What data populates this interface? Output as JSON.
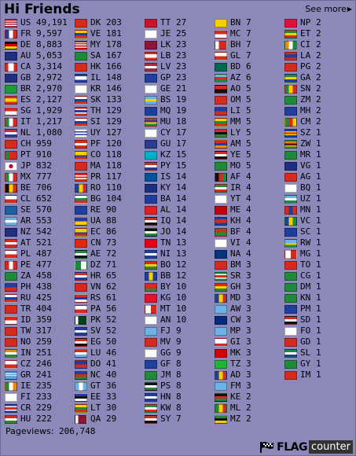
{
  "header": {
    "title": "Hi Friends",
    "see_more": "See more"
  },
  "footer": {
    "pageviews_label": "Pageviews:",
    "pageviews_value": "206,748",
    "brand_flag": "FLAG",
    "brand_counter": "counter"
  },
  "columns": [
    [
      {
        "code": "US",
        "count": "49,191"
      },
      {
        "code": "FR",
        "count": "9,597"
      },
      {
        "code": "DE",
        "count": "8,883"
      },
      {
        "code": "AU",
        "count": "5,053"
      },
      {
        "code": "CA",
        "count": "3,314"
      },
      {
        "code": "GB",
        "count": "2,972"
      },
      {
        "code": "BR",
        "count": "2,970"
      },
      {
        "code": "ES",
        "count": "2,127"
      },
      {
        "code": "SG",
        "count": "1,929"
      },
      {
        "code": "IT",
        "count": "1,217"
      },
      {
        "code": "NL",
        "count": "1,080"
      },
      {
        "code": "CH",
        "count": "959"
      },
      {
        "code": "PT",
        "count": "910"
      },
      {
        "code": "JP",
        "count": "832"
      },
      {
        "code": "MX",
        "count": "777"
      },
      {
        "code": "BE",
        "count": "706"
      },
      {
        "code": "CL",
        "count": "652"
      },
      {
        "code": "SE",
        "count": "570"
      },
      {
        "code": "AR",
        "count": "553"
      },
      {
        "code": "NZ",
        "count": "542"
      },
      {
        "code": "AT",
        "count": "521"
      },
      {
        "code": "PL",
        "count": "487"
      },
      {
        "code": "PE",
        "count": "477"
      },
      {
        "code": "ZA",
        "count": "458"
      },
      {
        "code": "PH",
        "count": "438"
      },
      {
        "code": "RU",
        "count": "425"
      },
      {
        "code": "TR",
        "count": "404"
      },
      {
        "code": "ID",
        "count": "359"
      },
      {
        "code": "TW",
        "count": "317"
      },
      {
        "code": "NO",
        "count": "259"
      },
      {
        "code": "IN",
        "count": "251"
      },
      {
        "code": "CZ",
        "count": "246"
      },
      {
        "code": "GR",
        "count": "241"
      },
      {
        "code": "IE",
        "count": "235"
      },
      {
        "code": "FI",
        "count": "233"
      },
      {
        "code": "CR",
        "count": "229"
      },
      {
        "code": "HU",
        "count": "222"
      }
    ],
    [
      {
        "code": "DK",
        "count": "203"
      },
      {
        "code": "VE",
        "count": "181"
      },
      {
        "code": "MY",
        "count": "178"
      },
      {
        "code": "SA",
        "count": "167"
      },
      {
        "code": "HK",
        "count": "166"
      },
      {
        "code": "IL",
        "count": "148"
      },
      {
        "code": "KR",
        "count": "146"
      },
      {
        "code": "SK",
        "count": "133"
      },
      {
        "code": "TH",
        "count": "129"
      },
      {
        "code": "SI",
        "count": "129"
      },
      {
        "code": "UY",
        "count": "127"
      },
      {
        "code": "PF",
        "count": "120"
      },
      {
        "code": "CO",
        "count": "118"
      },
      {
        "code": "MA",
        "count": "118"
      },
      {
        "code": "PR",
        "count": "117"
      },
      {
        "code": "RO",
        "count": "110"
      },
      {
        "code": "BG",
        "count": "104"
      },
      {
        "code": "RE",
        "count": "90"
      },
      {
        "code": "UA",
        "count": "88"
      },
      {
        "code": "EC",
        "count": "86"
      },
      {
        "code": "CN",
        "count": "73"
      },
      {
        "code": "AE",
        "count": "72"
      },
      {
        "code": "DZ",
        "count": "71"
      },
      {
        "code": "HR",
        "count": "65"
      },
      {
        "code": "VN",
        "count": "62"
      },
      {
        "code": "RS",
        "count": "61"
      },
      {
        "code": "PA",
        "count": "56"
      },
      {
        "code": "PK",
        "count": "52"
      },
      {
        "code": "SV",
        "count": "52"
      },
      {
        "code": "EG",
        "count": "50"
      },
      {
        "code": "LU",
        "count": "46"
      },
      {
        "code": "DO",
        "count": "41"
      },
      {
        "code": "NC",
        "count": "40"
      },
      {
        "code": "GT",
        "count": "36"
      },
      {
        "code": "EE",
        "count": "33"
      },
      {
        "code": "LT",
        "count": "30"
      },
      {
        "code": "QA",
        "count": "29"
      }
    ],
    [
      {
        "code": "TT",
        "count": "27"
      },
      {
        "code": "JE",
        "count": "25"
      },
      {
        "code": "LK",
        "count": "23"
      },
      {
        "code": "LB",
        "count": "23"
      },
      {
        "code": "LV",
        "count": "23"
      },
      {
        "code": "GP",
        "count": "23"
      },
      {
        "code": "GE",
        "count": "21"
      },
      {
        "code": "BS",
        "count": "19"
      },
      {
        "code": "MQ",
        "count": "19"
      },
      {
        "code": "MU",
        "count": "18"
      },
      {
        "code": "CY",
        "count": "17"
      },
      {
        "code": "GU",
        "count": "17"
      },
      {
        "code": "KZ",
        "count": "15"
      },
      {
        "code": "PY",
        "count": "15"
      },
      {
        "code": "IS",
        "count": "14"
      },
      {
        "code": "KY",
        "count": "14"
      },
      {
        "code": "BA",
        "count": "14"
      },
      {
        "code": "AL",
        "count": "14"
      },
      {
        "code": "IQ",
        "count": "14"
      },
      {
        "code": "JO",
        "count": "14"
      },
      {
        "code": "TN",
        "count": "13"
      },
      {
        "code": "NI",
        "count": "13"
      },
      {
        "code": "BO",
        "count": "12"
      },
      {
        "code": "BB",
        "count": "12"
      },
      {
        "code": "BY",
        "count": "10"
      },
      {
        "code": "KG",
        "count": "10"
      },
      {
        "code": "MT",
        "count": "10"
      },
      {
        "code": "AN",
        "count": "10"
      },
      {
        "code": "FJ",
        "count": "9"
      },
      {
        "code": "MV",
        "count": "9"
      },
      {
        "code": "GG",
        "count": "9"
      },
      {
        "code": "GF",
        "count": "8"
      },
      {
        "code": "JM",
        "count": "8"
      },
      {
        "code": "PS",
        "count": "8"
      },
      {
        "code": "HN",
        "count": "8"
      },
      {
        "code": "KW",
        "count": "8"
      },
      {
        "code": "SY",
        "count": "7"
      }
    ],
    [
      {
        "code": "BN",
        "count": "7"
      },
      {
        "code": "MC",
        "count": "7"
      },
      {
        "code": "BH",
        "count": "7"
      },
      {
        "code": "GL",
        "count": "7"
      },
      {
        "code": "BD",
        "count": "6"
      },
      {
        "code": "AZ",
        "count": "6"
      },
      {
        "code": "AO",
        "count": "5"
      },
      {
        "code": "OM",
        "count": "5"
      },
      {
        "code": "LI",
        "count": "5"
      },
      {
        "code": "MM",
        "count": "5"
      },
      {
        "code": "LY",
        "count": "5"
      },
      {
        "code": "AM",
        "count": "5"
      },
      {
        "code": "YE",
        "count": "5"
      },
      {
        "code": "MO",
        "count": "5"
      },
      {
        "code": "AF",
        "count": "4"
      },
      {
        "code": "IR",
        "count": "4"
      },
      {
        "code": "YT",
        "count": "4"
      },
      {
        "code": "ME",
        "count": "4"
      },
      {
        "code": "KH",
        "count": "4"
      },
      {
        "code": "BF",
        "count": "4"
      },
      {
        "code": "VI",
        "count": "4"
      },
      {
        "code": "NA",
        "count": "4"
      },
      {
        "code": "BM",
        "count": "3"
      },
      {
        "code": "SR",
        "count": "3"
      },
      {
        "code": "GH",
        "count": "3"
      },
      {
        "code": "MD",
        "count": "3"
      },
      {
        "code": "AW",
        "count": "3"
      },
      {
        "code": "CW",
        "count": "3"
      },
      {
        "code": "MP",
        "count": "3"
      },
      {
        "code": "GI",
        "count": "3"
      },
      {
        "code": "MK",
        "count": "3"
      },
      {
        "code": "TZ",
        "count": "3"
      },
      {
        "code": "AD",
        "count": "3"
      },
      {
        "code": "FM",
        "count": "3"
      },
      {
        "code": "KE",
        "count": "2"
      },
      {
        "code": "ML",
        "count": "2"
      },
      {
        "code": "MZ",
        "count": "2"
      }
    ],
    [
      {
        "code": "NP",
        "count": "2"
      },
      {
        "code": "ET",
        "count": "2"
      },
      {
        "code": "CI",
        "count": "2"
      },
      {
        "code": "LA",
        "count": "2"
      },
      {
        "code": "PG",
        "count": "2"
      },
      {
        "code": "GA",
        "count": "2"
      },
      {
        "code": "SN",
        "count": "2"
      },
      {
        "code": "ZM",
        "count": "2"
      },
      {
        "code": "MH",
        "count": "2"
      },
      {
        "code": "CM",
        "count": "2"
      },
      {
        "code": "SZ",
        "count": "1"
      },
      {
        "code": "ZW",
        "count": "1"
      },
      {
        "code": "MR",
        "count": "1"
      },
      {
        "code": "VG",
        "count": "1"
      },
      {
        "code": "AG",
        "count": "1"
      },
      {
        "code": "BQ",
        "count": "1"
      },
      {
        "code": "UZ",
        "count": "1"
      },
      {
        "code": "MN",
        "count": "1"
      },
      {
        "code": "VC",
        "count": "1"
      },
      {
        "code": "SC",
        "count": "1"
      },
      {
        "code": "RW",
        "count": "1"
      },
      {
        "code": "MG",
        "count": "1"
      },
      {
        "code": "TO",
        "count": "1"
      },
      {
        "code": "CG",
        "count": "1"
      },
      {
        "code": "DM",
        "count": "1"
      },
      {
        "code": "KN",
        "count": "1"
      },
      {
        "code": "PM",
        "count": "1"
      },
      {
        "code": "SD",
        "count": "1"
      },
      {
        "code": "FO",
        "count": "1"
      },
      {
        "code": "GD",
        "count": "1"
      },
      {
        "code": "SL",
        "count": "1"
      },
      {
        "code": "GY",
        "count": "1"
      },
      {
        "code": "IM",
        "count": "1"
      }
    ]
  ]
}
